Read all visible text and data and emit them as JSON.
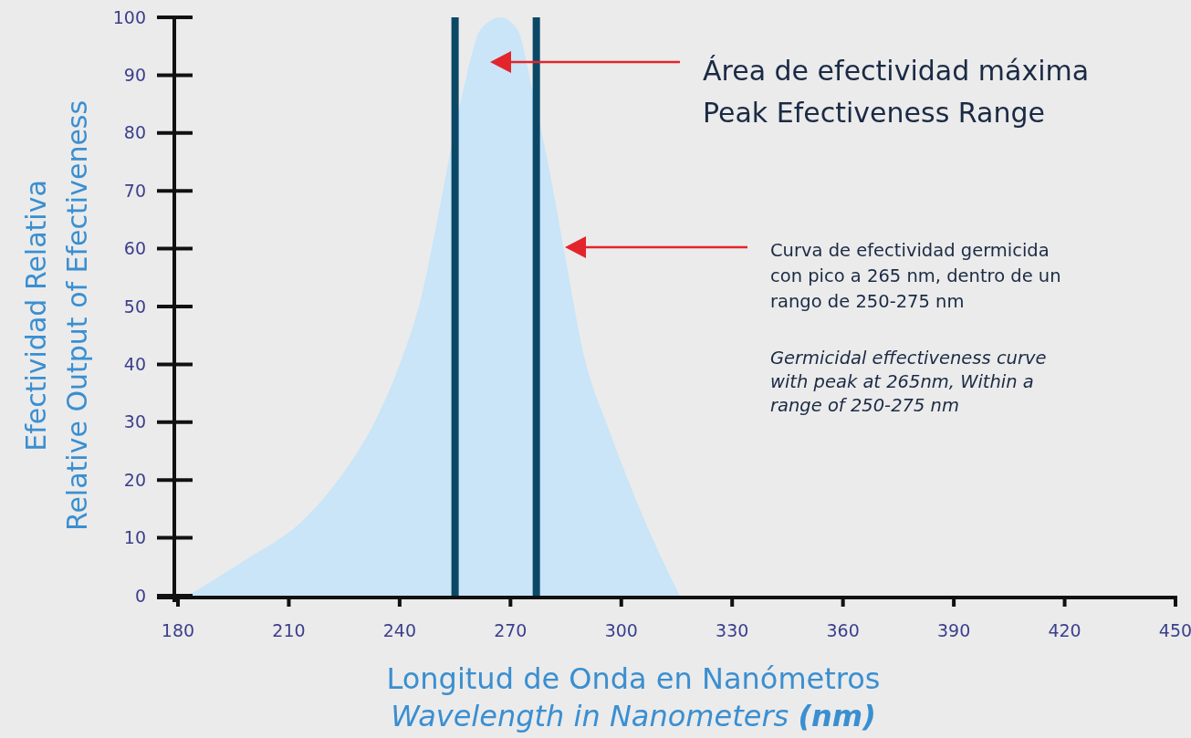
{
  "chart_data": {
    "type": "area",
    "xlabel": "Longitud de Onda en Nanómetros\nWavelength in Nanometers (nm)",
    "ylabel": "Efectividad Relativa\nRelative Output of Efectiveness",
    "x": [
      182.7,
      197.8,
      213.8,
      224.5,
      233.2,
      240.6,
      246,
      250.2,
      253.5,
      257.8,
      262,
      267.3,
      271.8,
      276.1,
      280.4,
      284.7,
      290.1,
      296.5,
      305,
      315.8
    ],
    "series": [
      {
        "color": "#c9e5f7",
        "values": [
          0,
          6,
          13,
          21,
          30,
          41,
          52,
          65,
          76,
          89,
          98,
          100,
          98,
          87,
          74,
          59,
          41,
          29,
          15,
          0
        ]
      }
    ],
    "xlim": [
      180,
      450
    ],
    "xticks": [
      180,
      210,
      240,
      270,
      300,
      330,
      360,
      390,
      420,
      450
    ],
    "ylim": [
      0,
      100
    ],
    "yticks": [
      0,
      10,
      20,
      30,
      40,
      50,
      60,
      70,
      80,
      90,
      100
    ],
    "grid": false,
    "ref_lines": [
      {
        "axis": "x",
        "value": 255,
        "color": "#0b4866"
      },
      {
        "axis": "x",
        "value": 277,
        "color": "#0b4866"
      }
    ],
    "annotations": [
      "Área de efectividad máxima\nPeak Efectiveness Range",
      "Curva de efectividad germicida\ncon pico a 265 nm, dentro de un\nrango de 250-275 nm",
      "Germicidal effectiveness curve\nwith peak at 265nm, Within a\nrange of 250-275 nm"
    ]
  }
}
